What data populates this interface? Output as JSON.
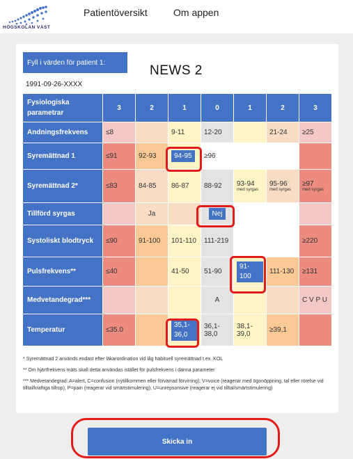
{
  "header": {
    "logo_text": "HÖGSKOLAN VÄST",
    "nav": [
      "Patientöversikt",
      "Om appen"
    ]
  },
  "form": {
    "fill_label": "Fyll i värden för patient 1:",
    "title": "NEWS 2",
    "patient_id": "1991-09-26-XXXX"
  },
  "table": {
    "header_label": "Fysiologiska parametrar",
    "scores": [
      "3",
      "2",
      "1",
      "0",
      "1",
      "2",
      "3"
    ],
    "rows": [
      {
        "label": "Andningsfrekvens",
        "cells": [
          "≤8",
          "",
          "9-11",
          "12-20",
          "",
          "21-24",
          "≥25"
        ]
      },
      {
        "label": "Syremättnad 1",
        "cells": [
          "≤91",
          "92-93",
          "94-95",
          "≥96",
          "",
          "",
          ""
        ]
      },
      {
        "label": "Syremättnad 2*",
        "cells": [
          "≤83",
          "84-85",
          "86-87",
          "88-92",
          "93-94",
          "95-96",
          "≥97"
        ],
        "subs": [
          "",
          "",
          "",
          "",
          "med syrgas",
          "med syrgas",
          "med syrgas"
        ]
      },
      {
        "label": "Tillförd syrgas",
        "cells": [
          "",
          "Ja",
          "",
          "Nej",
          "",
          "",
          ""
        ]
      },
      {
        "label": "Systoliskt blodtryck",
        "cells": [
          "≤90",
          "91-100",
          "101-110",
          "111-219",
          "",
          "",
          "≥220"
        ]
      },
      {
        "label": "Pulsfrekvens**",
        "cells": [
          "≤40",
          "",
          "41-50",
          "51-90",
          "91-100",
          "111-130",
          "≥131"
        ]
      },
      {
        "label": "Medvetandegrad***",
        "cells": [
          "",
          "",
          "",
          "A",
          "",
          "",
          "C V P U"
        ]
      },
      {
        "label": "Temperatur",
        "cells": [
          "≤35.0",
          "",
          "35,1-36,0",
          "36,1-38,0",
          "38,1-39,0",
          "≥39,1",
          ""
        ]
      }
    ]
  },
  "footnotes": [
    "* Syremättnad 2 används endast efter läkarordination vid låg habituell syremättnad t.ex. KOL",
    "** Om hjärtfrekvens mäts skall detta användas istället för pulsfrekvens i danna parameter",
    "*** Medvetandegrad: A=alert, C=confusion (nytillkommen eller förvärrad förvirring), V=voice (reagerar med ögonöppning, tal eller rörelse vid tilltal/kraftiga tillrop), P=pain (reagerar vid smärtstimulering), U=unrepsonsive (reagerar ej vid tilltal/smärtstimulering)"
  ],
  "submit_label": "Skicka in",
  "colors": {
    "primary": "#4472c4",
    "highlight": "#e21b1b"
  }
}
